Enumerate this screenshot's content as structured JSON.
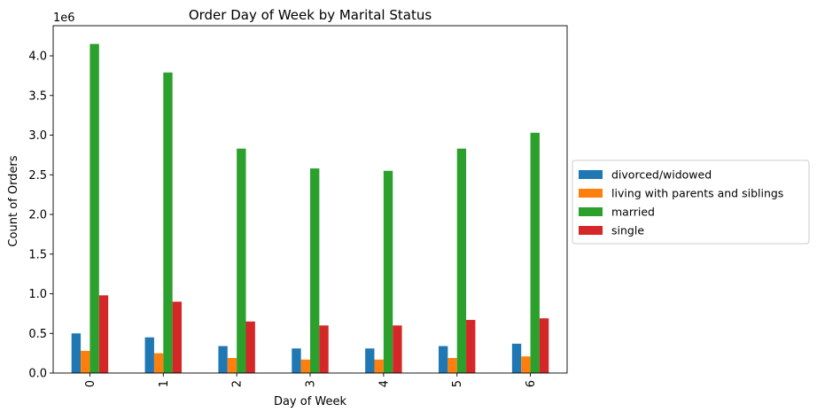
{
  "chart_data": {
    "type": "bar",
    "title": "Order Day of Week by Marital Status",
    "xlabel": "Day of Week",
    "ylabel": "Count of Orders",
    "y_offset_label": "1e6",
    "categories": [
      "0",
      "1",
      "2",
      "3",
      "4",
      "5",
      "6"
    ],
    "ylim": [
      0,
      4.38
    ],
    "yticks": [
      "0.0",
      "0.5",
      "1.0",
      "1.5",
      "2.0",
      "2.5",
      "3.0",
      "3.5",
      "4.0"
    ],
    "grid": false,
    "legend_position": "right",
    "series": [
      {
        "name": "divorced/widowed",
        "color": "#1f77b4",
        "values": [
          0.5,
          0.45,
          0.34,
          0.31,
          0.31,
          0.34,
          0.37
        ]
      },
      {
        "name": "living with parents and siblings",
        "color": "#ff7f0e",
        "values": [
          0.28,
          0.25,
          0.19,
          0.17,
          0.17,
          0.19,
          0.21
        ]
      },
      {
        "name": "married",
        "color": "#2ca02c",
        "values": [
          4.15,
          3.79,
          2.83,
          2.58,
          2.55,
          2.83,
          3.03
        ]
      },
      {
        "name": "single",
        "color": "#d62728",
        "values": [
          0.98,
          0.9,
          0.65,
          0.6,
          0.6,
          0.67,
          0.69
        ]
      }
    ]
  }
}
